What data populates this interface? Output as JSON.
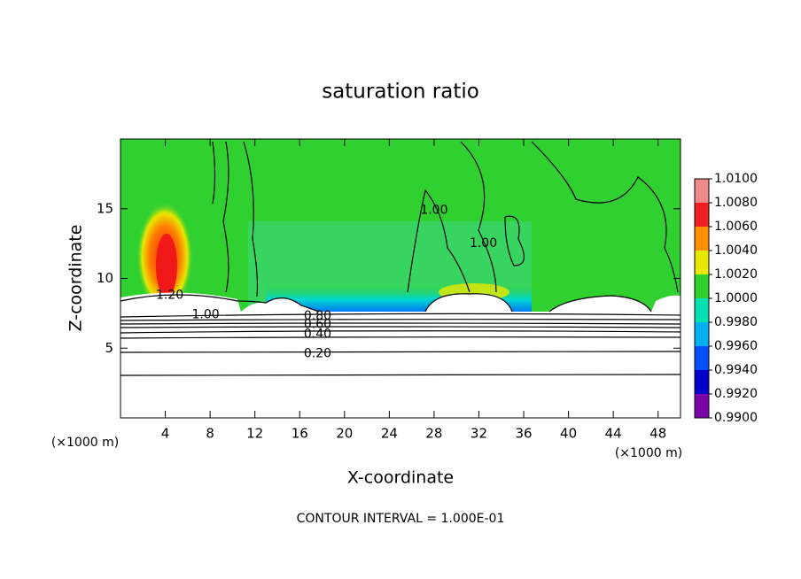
{
  "chart_data": {
    "type": "contour",
    "title": "saturation ratio",
    "x_label": "X-coordinate",
    "y_label": "Z-coordinate",
    "x_unit_labels": [
      "(×1000 m)",
      "(×1000 m)"
    ],
    "footnote": "CONTOUR INTERVAL = 1.000E-01",
    "xlim": [
      0,
      50
    ],
    "ylim": [
      0,
      20
    ],
    "xticks": [
      4,
      8,
      12,
      16,
      20,
      24,
      28,
      32,
      36,
      40,
      44,
      48
    ],
    "yticks": [
      5,
      10,
      15
    ],
    "contour_labels": [
      {
        "value": 1.2,
        "label": "1.20",
        "x": 4.4,
        "y": 8.8
      },
      {
        "value": 1.0,
        "label": "1.00",
        "x": 7.6,
        "y": 7.4
      },
      {
        "value": 0.8,
        "label": "0.80",
        "x": 17.6,
        "y": 7.3
      },
      {
        "value": 0.6,
        "label": "0.60",
        "x": 17.6,
        "y": 6.7
      },
      {
        "value": 0.4,
        "label": "0.40",
        "x": 17.6,
        "y": 6.0
      },
      {
        "value": 0.2,
        "label": "0.20",
        "x": 17.6,
        "y": 4.6
      },
      {
        "value": 1.0,
        "label": "1.00",
        "x": 28.0,
        "y": 14.9
      },
      {
        "value": 1.0,
        "label": "1.00",
        "x": 32.4,
        "y": 12.5
      }
    ],
    "colorbar": {
      "ticks": [
        {
          "value": 0.99,
          "label": "0.9900"
        },
        {
          "value": 0.992,
          "label": "0.9920"
        },
        {
          "value": 0.994,
          "label": "0.9940"
        },
        {
          "value": 0.996,
          "label": "0.9960"
        },
        {
          "value": 0.998,
          "label": "0.9980"
        },
        {
          "value": 1.0,
          "label": "1.0000"
        },
        {
          "value": 1.002,
          "label": "1.0020"
        },
        {
          "value": 1.004,
          "label": "1.0040"
        },
        {
          "value": 1.006,
          "label": "1.0060"
        },
        {
          "value": 1.008,
          "label": "1.0080"
        },
        {
          "value": 1.01,
          "label": "1.0100"
        }
      ],
      "colors": [
        "#7a00a8",
        "#0000c8",
        "#0050ff",
        "#00b0f0",
        "#00e0b0",
        "#30d030",
        "#e8e800",
        "#ff9000",
        "#f02020",
        "#f08a8a"
      ]
    }
  }
}
